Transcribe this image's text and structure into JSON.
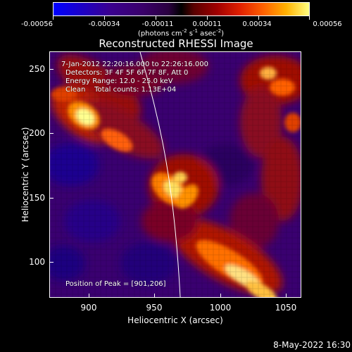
{
  "colorbar": {
    "tick_labels": [
      "-0.00056",
      "-0.00034",
      "-0.00011",
      "0.00011",
      "0.00034",
      "0.00056"
    ],
    "units_prefix": "(photons cm",
    "units_exp1": "-2",
    "units_mid": " s",
    "units_exp2": "-1",
    "units_mid2": " asec",
    "units_exp3": "-2",
    "units_suffix": ")"
  },
  "plot": {
    "title": "Reconstructed RHESSI Image",
    "info": {
      "time": "7-Jan-2012 22:20:16.000 to 22:26:16.000",
      "detectors": "Detectors: 3F 4F 5F 6F 7F 8F, Att 0",
      "energy": "Energy Range: 12.0 - 25.0 keV",
      "clean": "Clean    Total counts: 1.13E+04"
    },
    "peak": "Position of Peak = [901,206]",
    "xlabel": "Heliocentric X (arcsec)",
    "ylabel": "Heliocentric Y (arcsec)",
    "xticks": [
      "900",
      "950",
      "1000",
      "1050"
    ],
    "yticks": [
      "250",
      "200",
      "150",
      "100"
    ],
    "xlim": [
      870,
      1060
    ],
    "ylim": [
      70,
      265
    ]
  },
  "timestamp": "8-May-2022 16:30"
}
